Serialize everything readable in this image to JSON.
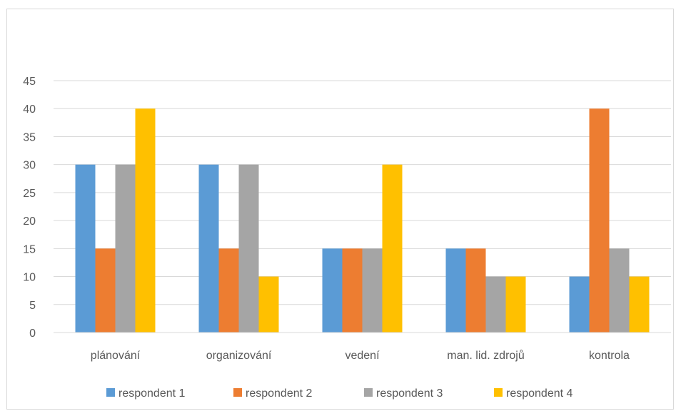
{
  "chart_data": {
    "type": "bar",
    "categories": [
      "plánování",
      "organizování",
      "vedení",
      "man. lid. zdrojů",
      "kontrola"
    ],
    "series": [
      {
        "name": "respondent 1",
        "color": "#5B9BD5",
        "values": [
          30,
          30,
          15,
          15,
          10
        ]
      },
      {
        "name": "respondent 2",
        "color": "#ED7D31",
        "values": [
          15,
          15,
          15,
          15,
          40
        ]
      },
      {
        "name": "respondent 3",
        "color": "#A5A5A5",
        "values": [
          30,
          30,
          15,
          10,
          15
        ]
      },
      {
        "name": "respondent 4",
        "color": "#FFC000",
        "values": [
          40,
          10,
          30,
          10,
          10
        ]
      }
    ],
    "yticks": [
      "0",
      "5",
      "10",
      "15",
      "20",
      "25",
      "30",
      "35",
      "40",
      "45"
    ],
    "ylim": [
      0,
      45
    ],
    "grid": true,
    "legend_position": "bottom"
  }
}
